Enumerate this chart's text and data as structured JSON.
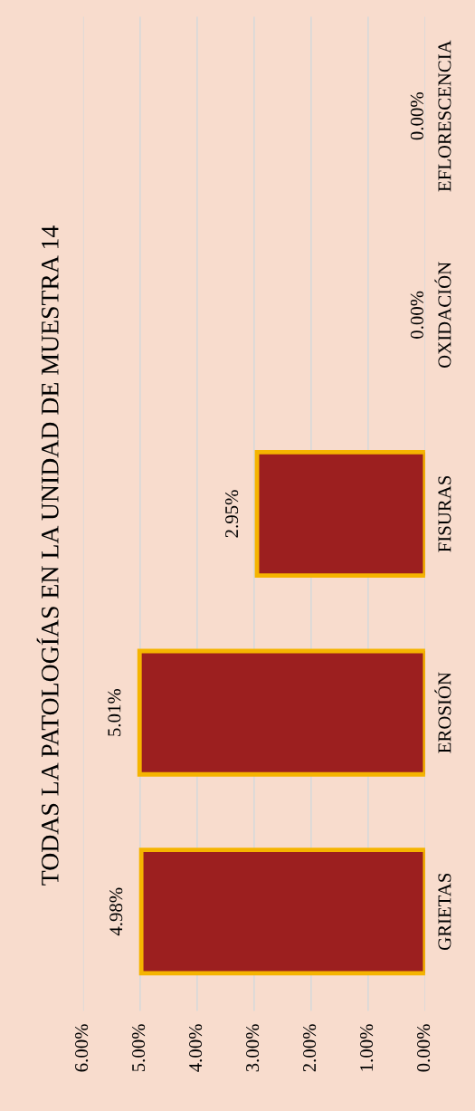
{
  "chart_data": {
    "type": "bar",
    "orientation": "horizontal",
    "title": "TODAS LA PATOLOGÍAS EN LA UNIDAD DE MUESTRA 14",
    "categories": [
      "EFLORESCENCIA",
      "OXIDACIÓN",
      "FISURAS",
      "EROSIÓN",
      "GRIETAS"
    ],
    "values": [
      0,
      0,
      2.95,
      5.01,
      4.98
    ],
    "value_labels": [
      "0.00%",
      "0.00%",
      "2.95%",
      "5.01%",
      "4.98%"
    ],
    "color": "#9c1f1f",
    "xlim": [
      6,
      0
    ],
    "xticks": [
      {
        "value": 6,
        "label": "6.00%"
      },
      {
        "value": 5,
        "label": "5.00%"
      },
      {
        "value": 4,
        "label": "4.00%"
      },
      {
        "value": 3,
        "label": "3.00%"
      },
      {
        "value": 2,
        "label": "2.00%"
      },
      {
        "value": 1,
        "label": "1.00%"
      },
      {
        "value": 0,
        "label": "0.00%"
      }
    ],
    "grid": "x"
  }
}
